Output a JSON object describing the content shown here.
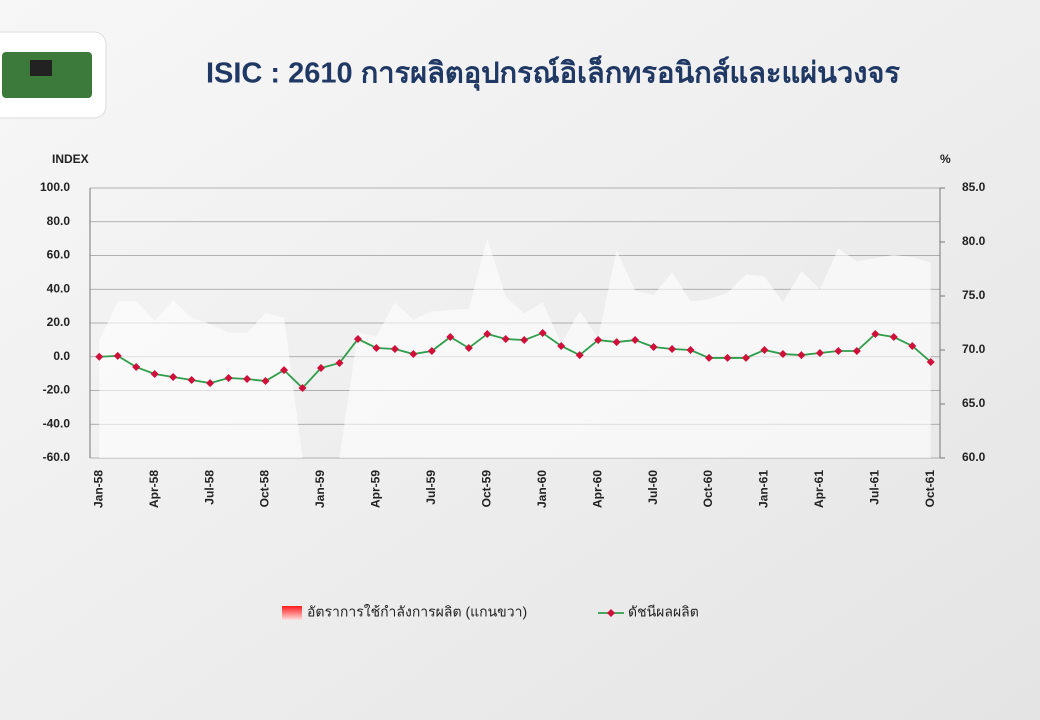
{
  "chart_data": {
    "type": "area-line",
    "title": "ISIC : 2610 การผลิตอุปกรณ์อิเล็กทรอนิกส์และแผ่นวงจร",
    "y_label": "INDEX",
    "y2_label": "%",
    "categories": [
      "Jan-58",
      null,
      null,
      "Apr-58",
      null,
      null,
      "Jul-58",
      null,
      null,
      "Oct-58",
      null,
      null,
      "Jan-59",
      null,
      null,
      "Apr-59",
      null,
      null,
      "Jul-59",
      null,
      null,
      "Oct-59",
      null,
      null,
      "Jan-60",
      null,
      null,
      "Apr-60",
      null,
      null,
      "Jul-60",
      null,
      null,
      "Oct-60",
      null,
      null,
      "Jan-61",
      null,
      null,
      "Apr-61",
      null,
      null,
      "Jul-61",
      null,
      null,
      "Oct-61"
    ],
    "series": [
      {
        "name": "อัตราการใช้กำลังการผลิต (แกนขวา)",
        "type": "area",
        "axis": "y2",
        "color": "#ff2a2a",
        "values": [
          70.9,
          74.5,
          74.5,
          72.7,
          74.6,
          73.0,
          72.4,
          71.6,
          71.6,
          73.4,
          73.0,
          60,
          60,
          60,
          71.6,
          71.3,
          74.4,
          72.8,
          73.6,
          73.7,
          73.8,
          80.3,
          74.9,
          73.4,
          74.4,
          70.6,
          73.6,
          71.1,
          79.2,
          75.5,
          75.1,
          77.2,
          74.5,
          74.7,
          75.3,
          77.0,
          76.8,
          74.4,
          77.3,
          75.6,
          79.4,
          78.2,
          78.5,
          78.8,
          78.6,
          78.1
        ]
      },
      {
        "name": "ดัชนีผลผลิต",
        "type": "line",
        "color": "#2e9e4a",
        "marker_color": "#d0103a",
        "values": [
          0,
          0.5,
          -6.1,
          -10.2,
          -12,
          -13.8,
          -15.6,
          -12.6,
          -13.2,
          -14.4,
          -7.9,
          -18.5,
          -6.7,
          -3.7,
          10.5,
          5.2,
          4.6,
          1.6,
          3.4,
          11.7,
          5.2,
          13.5,
          10.5,
          9.9,
          14.1,
          6.4,
          1,
          9.9,
          8.7,
          9.9,
          5.8,
          4.6,
          4,
          -0.7,
          -0.7,
          -0.7,
          4,
          1.6,
          1,
          2.2,
          3.4,
          3.4,
          13.5,
          11.7,
          6.4,
          -3.1
        ]
      }
    ],
    "ylim": [
      -60,
      100
    ],
    "yticks": [
      {
        "value": -60,
        "label": "-60.0"
      },
      {
        "value": -40,
        "label": "-40.0"
      },
      {
        "value": -20,
        "label": "-20.0"
      },
      {
        "value": 0,
        "label": "0.0"
      },
      {
        "value": 20,
        "label": "20.0"
      },
      {
        "value": 40,
        "label": "40.0"
      },
      {
        "value": 60,
        "label": "60.0"
      },
      {
        "value": 80,
        "label": "80.0"
      },
      {
        "value": 100,
        "label": "100.0"
      }
    ],
    "y2lim": [
      60,
      85
    ],
    "y2ticks": [
      {
        "value": 60,
        "label": "60.0"
      },
      {
        "value": 65,
        "label": "65.0"
      },
      {
        "value": 70,
        "label": "70.0"
      },
      {
        "value": 75,
        "label": "75.0"
      },
      {
        "value": 80,
        "label": "80.0"
      },
      {
        "value": 85,
        "label": "85.0"
      }
    ],
    "grid": true,
    "legend": "bottom"
  }
}
